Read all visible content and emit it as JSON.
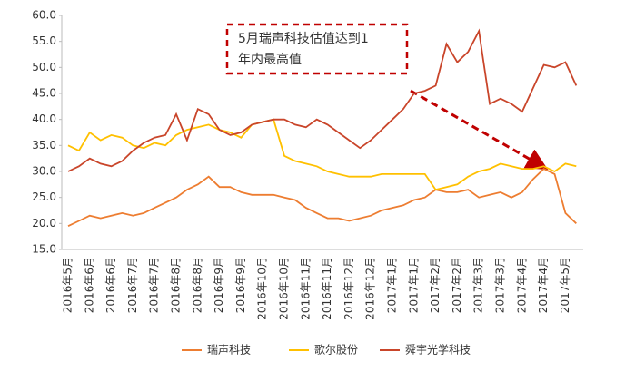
{
  "chart_data": {
    "type": "line",
    "categories": [
      "2016年5月",
      null,
      "2016年6月",
      null,
      "2016年6月",
      null,
      "2016年7月",
      null,
      "2016年7月",
      null,
      "2016年8月",
      null,
      "2016年8月",
      null,
      "2016年9月",
      null,
      "2016年9月",
      null,
      "2016年10月",
      null,
      "2016年10月",
      null,
      "2016年11月",
      null,
      "2016年11月",
      null,
      "2016年12月",
      null,
      "2016年12月",
      null,
      "2017年1月",
      null,
      "2017年1月",
      null,
      "2017年2月",
      null,
      "2017年2月",
      null,
      "2017年3月",
      null,
      "2017年3月",
      null,
      "2017年4月",
      null,
      "2017年4月",
      null,
      "2017年5月",
      null
    ],
    "series": [
      {
        "name": "瑞声科技",
        "color": "#ed7d31",
        "values": [
          19.5,
          20.5,
          21.5,
          21,
          21.5,
          22,
          21.5,
          22,
          23,
          24,
          25,
          26.5,
          27.5,
          29,
          27,
          27,
          26,
          25.5,
          25.5,
          25.5,
          25,
          24.5,
          23,
          22,
          21,
          21,
          20.5,
          21,
          21.5,
          22.5,
          23,
          23.5,
          24.5,
          25,
          26.5,
          26,
          26,
          26.5,
          25,
          25.5,
          26,
          25,
          26,
          28.5,
          30.5,
          29.5,
          22,
          20
        ]
      },
      {
        "name": "歌尔股份",
        "color": "#ffc000",
        "values": [
          35,
          34,
          37.5,
          36,
          37,
          36.5,
          35,
          34.5,
          35.5,
          35,
          37,
          38,
          38.5,
          39,
          38,
          37.5,
          36.5,
          39,
          39.5,
          40,
          33,
          32,
          31.5,
          31,
          30,
          29.5,
          29,
          29,
          29,
          29.5,
          29.5,
          29.5,
          29.5,
          29.5,
          26.5,
          27,
          27.5,
          29,
          30,
          30.5,
          31.5,
          31,
          30.5,
          30.5,
          31,
          30,
          31.5,
          31
        ]
      },
      {
        "name": "舜宇光学科技",
        "color": "#c9452a",
        "values": [
          30,
          31,
          32.5,
          31.5,
          31,
          32,
          34,
          35.5,
          36.5,
          37,
          41,
          36,
          42,
          41,
          38,
          37,
          37.5,
          39,
          39.5,
          40,
          40,
          39,
          38.5,
          40,
          39,
          37.5,
          36,
          34.5,
          36,
          38,
          40,
          42,
          45,
          45.5,
          46.5,
          54.5,
          51,
          53,
          57,
          43,
          44,
          43,
          41.5,
          46,
          50.5,
          50,
          51,
          46.5
        ]
      }
    ],
    "ylim": [
      15,
      60
    ],
    "yticks": [
      {
        "value": 15,
        "label": "15.0"
      },
      {
        "value": 20,
        "label": "20.0"
      },
      {
        "value": 25,
        "label": "25.0"
      },
      {
        "value": 30,
        "label": "30.0"
      },
      {
        "value": 35,
        "label": "35.0"
      },
      {
        "value": 40,
        "label": "40.0"
      },
      {
        "value": 45,
        "label": "45.0"
      },
      {
        "value": 50,
        "label": "50.0"
      },
      {
        "value": 55,
        "label": "55.0"
      },
      {
        "value": 60,
        "label": "60.0"
      }
    ],
    "annotation": [
      "5月瑞声科技估值达到1",
      "年内最高值"
    ],
    "legend": "bottom"
  }
}
